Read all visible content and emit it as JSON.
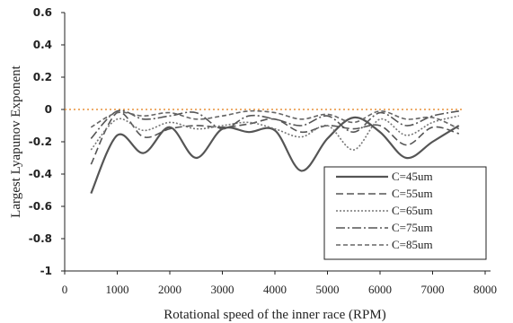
{
  "chart_data": {
    "type": "line",
    "title": "",
    "xlabel": "Rotational speed of the inner race (RPM)",
    "ylabel": "Largest Lyapunov Exponent",
    "xlim": [
      0,
      8000
    ],
    "ylim": [
      -1,
      0.6
    ],
    "x_ticks": [
      "0",
      "1000",
      "2000",
      "3000",
      "4000",
      "5000",
      "6000",
      "7000",
      "8000"
    ],
    "y_ticks": [
      "0.6",
      "0.4",
      "0.2",
      "0",
      "-0.2",
      "-0.4",
      "-0.6",
      "-0.8",
      "-1"
    ],
    "reference_line": {
      "y": 0,
      "color": "#e8923a"
    },
    "legend_position": "bottom-right",
    "grid": false,
    "series": [
      {
        "name": "C=45um",
        "dash": "",
        "width": 2.2,
        "color": "#555555",
        "x": [
          500,
          1000,
          1500,
          2000,
          2500,
          3000,
          3500,
          4000,
          4500,
          5000,
          5500,
          6000,
          6500,
          7000,
          7500
        ],
        "y": [
          -0.52,
          -0.16,
          -0.27,
          -0.11,
          -0.3,
          -0.12,
          -0.14,
          -0.13,
          -0.38,
          -0.18,
          -0.05,
          -0.14,
          -0.3,
          -0.2,
          -0.1
        ]
      },
      {
        "name": "C=55um",
        "dash": "8,4",
        "width": 1.6,
        "color": "#555555",
        "x": [
          500,
          1000,
          1500,
          2000,
          2500,
          3000,
          3500,
          4000,
          4500,
          5000,
          5500,
          6000,
          6500,
          7000,
          7500
        ],
        "y": [
          -0.34,
          -0.02,
          -0.17,
          -0.12,
          -0.1,
          -0.11,
          -0.09,
          -0.06,
          -0.14,
          -0.1,
          -0.12,
          -0.1,
          -0.22,
          -0.11,
          -0.15
        ]
      },
      {
        "name": "C=65um",
        "dash": "2,2",
        "width": 1.6,
        "color": "#777777",
        "x": [
          500,
          1000,
          1500,
          2000,
          2500,
          3000,
          3500,
          4000,
          4500,
          5000,
          5500,
          6000,
          6500,
          7000,
          7500
        ],
        "y": [
          -0.25,
          -0.06,
          -0.13,
          -0.08,
          -0.12,
          -0.1,
          -0.08,
          -0.12,
          -0.17,
          -0.1,
          -0.25,
          -0.06,
          -0.16,
          -0.08,
          -0.04
        ]
      },
      {
        "name": "C=75um",
        "dash": "10,3,2,3",
        "width": 1.6,
        "color": "#555555",
        "x": [
          500,
          1000,
          1500,
          2000,
          2500,
          3000,
          3500,
          4000,
          4500,
          5000,
          5500,
          6000,
          6500,
          7000,
          7500
        ],
        "y": [
          -0.18,
          -0.01,
          -0.06,
          -0.04,
          -0.02,
          -0.12,
          -0.04,
          -0.06,
          -0.1,
          -0.04,
          -0.14,
          -0.02,
          -0.1,
          -0.04,
          -0.01
        ]
      },
      {
        "name": "C=85um",
        "dash": "5,3",
        "width": 1.6,
        "color": "#666666",
        "x": [
          500,
          1000,
          1500,
          2000,
          2500,
          3000,
          3500,
          4000,
          4500,
          5000,
          5500,
          6000,
          6500,
          7000,
          7500
        ],
        "y": [
          -0.11,
          -0.02,
          -0.04,
          -0.02,
          -0.06,
          -0.04,
          -0.01,
          -0.02,
          -0.06,
          -0.03,
          -0.08,
          -0.01,
          -0.06,
          -0.05,
          -0.12
        ]
      }
    ]
  }
}
